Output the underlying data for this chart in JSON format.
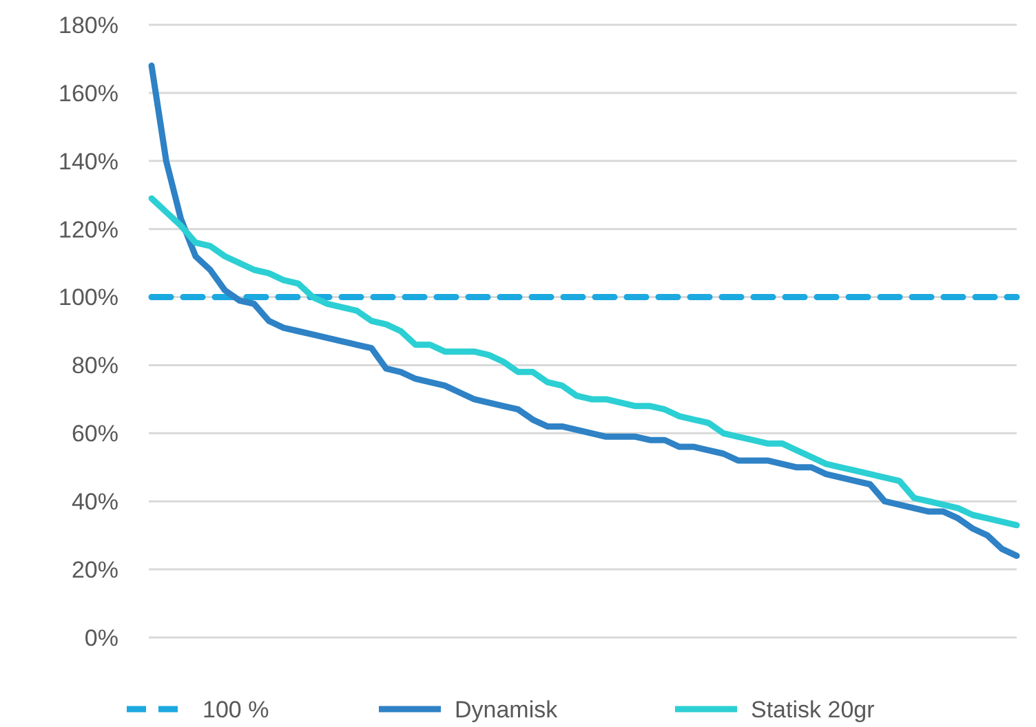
{
  "chart_data": {
    "type": "line",
    "categories": [
      null,
      null,
      null,
      null,
      null,
      null,
      null,
      null,
      null,
      null,
      null,
      null,
      null,
      null,
      null,
      null,
      null,
      null,
      null,
      null,
      null,
      null,
      null,
      null,
      null,
      null,
      null,
      null,
      null,
      null,
      null,
      null,
      null,
      null,
      null,
      null,
      null,
      null,
      null,
      null,
      null,
      null,
      null,
      null,
      null,
      null,
      null,
      null,
      null,
      null,
      null,
      null,
      null,
      null,
      null,
      null,
      null,
      null,
      null,
      null
    ],
    "series": [
      {
        "name": "100 %",
        "color": "#1ba9e0",
        "line_style": "dashed",
        "values": [
          100,
          100,
          100,
          100,
          100,
          100,
          100,
          100,
          100,
          100,
          100,
          100,
          100,
          100,
          100,
          100,
          100,
          100,
          100,
          100,
          100,
          100,
          100,
          100,
          100,
          100,
          100,
          100,
          100,
          100,
          100,
          100,
          100,
          100,
          100,
          100,
          100,
          100,
          100,
          100,
          100,
          100,
          100,
          100,
          100,
          100,
          100,
          100,
          100,
          100,
          100,
          100,
          100,
          100,
          100,
          100,
          100,
          100,
          100,
          100
        ]
      },
      {
        "name": "Dynamisk",
        "color": "#2e82c5",
        "line_style": "solid",
        "values": [
          168,
          140,
          123,
          112,
          108,
          102,
          99,
          98,
          93,
          91,
          90,
          89,
          88,
          87,
          86,
          85,
          79,
          78,
          76,
          75,
          74,
          72,
          70,
          69,
          68,
          67,
          64,
          62,
          62,
          61,
          60,
          59,
          59,
          59,
          58,
          58,
          56,
          56,
          55,
          54,
          52,
          52,
          52,
          51,
          50,
          50,
          48,
          47,
          46,
          45,
          40,
          39,
          38,
          37,
          37,
          35,
          32,
          30,
          26,
          24
        ]
      },
      {
        "name": "Statisk 20gr",
        "color": "#2ccfd3",
        "line_style": "solid",
        "values": [
          129,
          125,
          121,
          116,
          115,
          112,
          110,
          108,
          107,
          105,
          104,
          100,
          98,
          97,
          96,
          93,
          92,
          90,
          86,
          86,
          84,
          84,
          84,
          83,
          81,
          78,
          78,
          75,
          74,
          71,
          70,
          70,
          69,
          68,
          68,
          67,
          65,
          64,
          63,
          60,
          59,
          58,
          57,
          57,
          55,
          53,
          51,
          50,
          49,
          48,
          47,
          46,
          41,
          40,
          39,
          38,
          36,
          35,
          34,
          33
        ]
      }
    ],
    "ylim": [
      0,
      180
    ],
    "yticks": [
      {
        "value": 0,
        "label": "0%"
      },
      {
        "value": 20,
        "label": "20%"
      },
      {
        "value": 40,
        "label": "40%"
      },
      {
        "value": 60,
        "label": "60%"
      },
      {
        "value": 80,
        "label": "80%"
      },
      {
        "value": 100,
        "label": "100%"
      },
      {
        "value": 120,
        "label": "120%"
      },
      {
        "value": 140,
        "label": "140%"
      },
      {
        "value": 160,
        "label": "160%"
      },
      {
        "value": 180,
        "label": "180%"
      }
    ],
    "grid": "y",
    "legend": "bottom",
    "marker": "none"
  }
}
